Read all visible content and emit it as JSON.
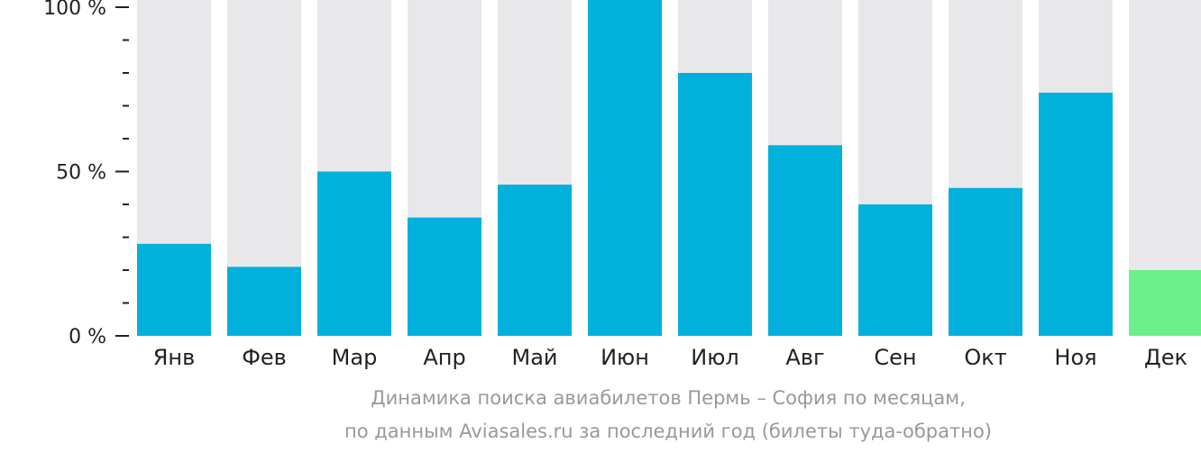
{
  "chart_data": {
    "type": "bar",
    "categories": [
      "Янв",
      "Фев",
      "Мар",
      "Апр",
      "Май",
      "Июн",
      "Июл",
      "Авг",
      "Сен",
      "Окт",
      "Ноя",
      "Дек"
    ],
    "values": [
      28,
      21,
      50,
      36,
      46,
      100,
      80,
      58,
      40,
      45,
      74,
      20
    ],
    "ylim": [
      0,
      100
    ],
    "yticks": [
      "0 %",
      "50 %",
      "100 %"
    ],
    "grid": false,
    "colors": {
      "bar": "#02b0dc",
      "highlight": "#6cf08a",
      "track": "#e8e8ea"
    },
    "highlight_index": 11
  },
  "caption": {
    "line1": "Динамика поиска авиабилетов Пермь – София по месяцам,",
    "line2": "по данным Aviasales.ru за последний год (билеты туда-обратно)"
  }
}
